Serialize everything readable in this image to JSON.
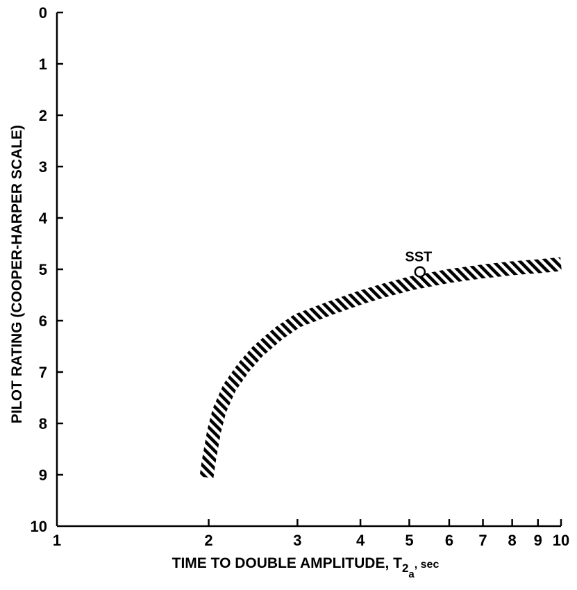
{
  "chart_data": {
    "type": "line",
    "xlabel": "TIME TO DOUBLE AMPLITUDE, T",
    "xlabel_sub_main": "2",
    "xlabel_sub_sub": "a",
    "xlabel_unit": ", sec",
    "ylabel": "PILOT RATING (COOPER-HARPER SCALE)",
    "x_scale": "log",
    "xlim": [
      1,
      10
    ],
    "ylim": [
      10,
      0
    ],
    "y_inverted": true,
    "x_ticks": [
      "1",
      "2",
      "3",
      "4",
      "5",
      "6",
      "7",
      "8",
      "9",
      "10"
    ],
    "y_ticks": [
      "0",
      "1",
      "2",
      "3",
      "4",
      "5",
      "6",
      "7",
      "8",
      "9",
      "10"
    ],
    "grid": false,
    "series": [
      {
        "style": "hatched band",
        "x": [
          1.98,
          2.0,
          2.05,
          2.1,
          2.2,
          2.35,
          2.5,
          2.75,
          3.0,
          3.5,
          4.0,
          4.5,
          5.0,
          5.5,
          6.0,
          7.0,
          8.0,
          9.0,
          10.0
        ],
        "y": [
          9.05,
          8.75,
          8.15,
          7.75,
          7.3,
          6.9,
          6.6,
          6.25,
          6.0,
          5.75,
          5.55,
          5.4,
          5.28,
          5.2,
          5.13,
          5.04,
          4.98,
          4.94,
          4.9
        ]
      }
    ],
    "annotations": [
      {
        "text": "SST",
        "x": 5.25,
        "y": 5.05,
        "marker": "open-circle"
      }
    ]
  }
}
